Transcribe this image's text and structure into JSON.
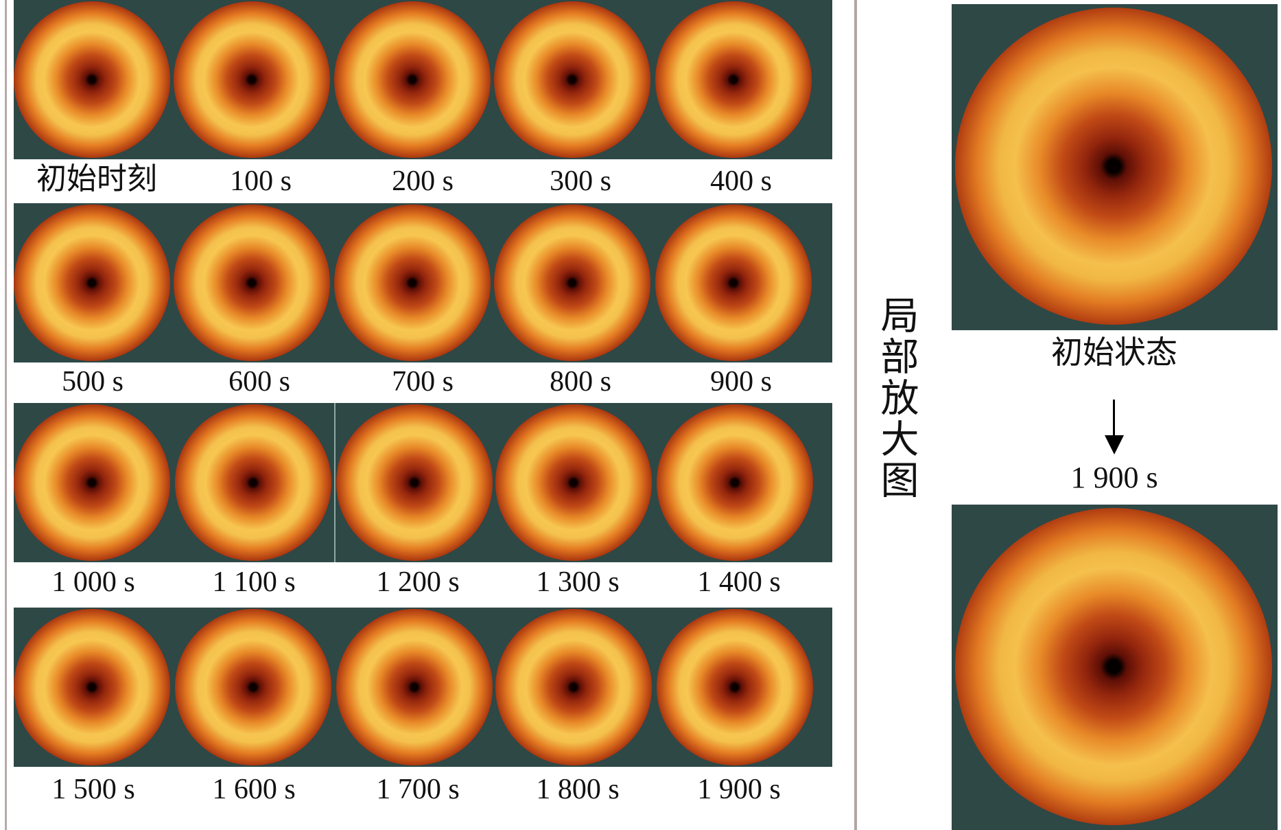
{
  "time_labels": {
    "row1": [
      "初始时刻",
      "100 s",
      "200 s",
      "300 s",
      "400 s"
    ],
    "row2": [
      "500 s",
      "600 s",
      "700 s",
      "800 s",
      "900 s"
    ],
    "row3": [
      "1 000 s",
      "1 100 s",
      "1 200 s",
      "1 300 s",
      "1 400 s"
    ],
    "row4": [
      "1 500 s",
      "1 600 s",
      "1 700 s",
      "1 800 s",
      "1 900 s"
    ]
  },
  "zoom_label": "局部放大图",
  "zoom_initial_label": "初始状态",
  "zoom_final_label": "1 900 s"
}
